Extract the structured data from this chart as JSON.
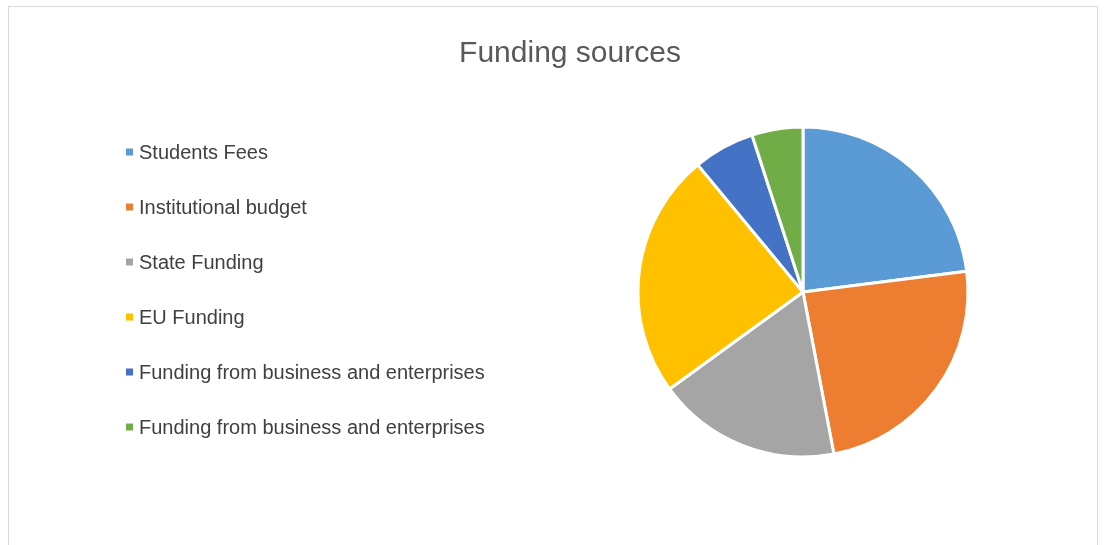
{
  "chart_data": {
    "type": "pie",
    "title": "Funding sources",
    "categories": [
      "Students Fees",
      "Institutional budget",
      "State Funding",
      "EU Funding",
      "Funding from business and enterprises",
      "Funding from business and enterprises"
    ],
    "values": [
      23,
      24,
      18,
      24,
      6,
      5
    ],
    "colors": [
      "#5b9bd5",
      "#ed7d31",
      "#a5a5a5",
      "#ffc000",
      "#4472c4",
      "#70ad47"
    ],
    "legend": "left"
  }
}
